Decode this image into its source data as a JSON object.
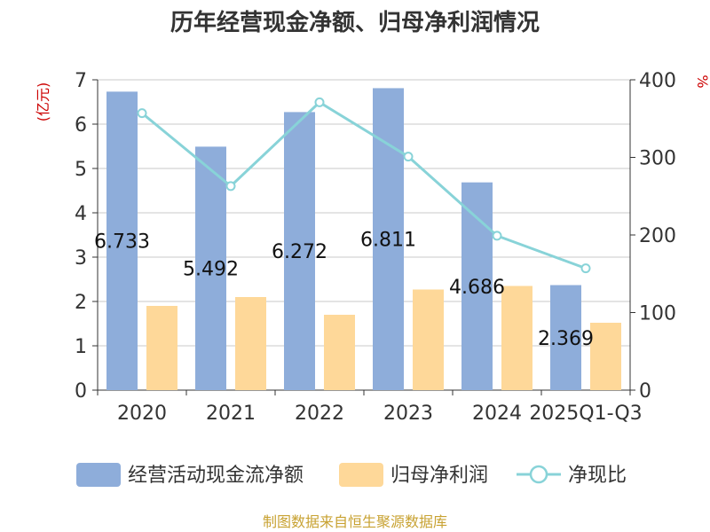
{
  "chart_data": {
    "type": "bar",
    "title": "历年经营现金净额、归母净利润情况",
    "categories": [
      "2020",
      "2021",
      "2022",
      "2023",
      "2024",
      "2025Q1-Q3"
    ],
    "series": [
      {
        "name": "经营活动现金流净额",
        "kind": "bar",
        "axis": "left",
        "color": "#8eadda",
        "values": [
          6.733,
          5.492,
          6.272,
          6.811,
          4.686,
          2.369
        ],
        "labels": [
          "6.733",
          "5.492",
          "6.272",
          "6.811",
          "4.686",
          "2.369"
        ]
      },
      {
        "name": "归母净利润",
        "kind": "bar",
        "axis": "left",
        "color": "#fed899",
        "values": [
          1.9,
          2.1,
          1.7,
          2.27,
          2.35,
          1.52
        ]
      },
      {
        "name": "净现比",
        "kind": "line",
        "axis": "right",
        "color": "#88d3d8",
        "values": [
          357,
          263,
          371,
          301,
          199,
          157
        ]
      }
    ],
    "y_left": {
      "unit": "(亿元)",
      "min": 0,
      "max": 7,
      "ticks": [
        0,
        1,
        2,
        3,
        4,
        5,
        6,
        7
      ]
    },
    "y_right": {
      "unit": "%",
      "min": 0,
      "max": 400,
      "ticks": [
        0,
        100,
        200,
        300,
        400
      ]
    },
    "grid": true,
    "legend": "bottom"
  },
  "source": "制图数据来自恒生聚源数据库"
}
